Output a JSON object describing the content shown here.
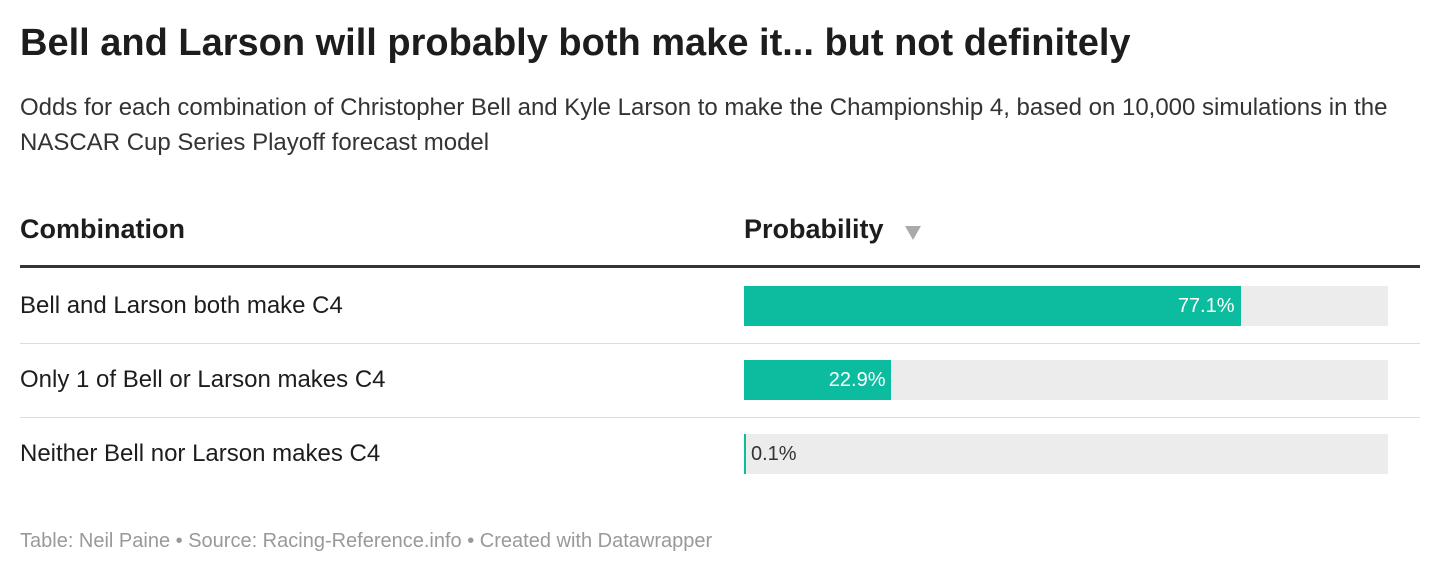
{
  "title": "Bell and Larson will probably both make it... but not definitely",
  "subtitle": "Odds for each combination of Christopher Bell and Kyle Larson to make the Championship 4, based on 10,000 simulations in the NASCAR Cup Series Playoff forecast model",
  "table": {
    "type": "bar",
    "columns": [
      "Combination",
      "Probability"
    ],
    "categories": [
      "Bell and Larson both make C4",
      "Only 1 of Bell or Larson makes C4",
      "Neither Bell nor Larson makes C4"
    ],
    "values": [
      77.1,
      22.9,
      0.1
    ],
    "value_labels": [
      "77.1%",
      "22.9%",
      "0.1%"
    ],
    "xlim": [
      0,
      100
    ],
    "color": "#0bbc9f"
  },
  "footer": "Table: Neil Paine • Source: Racing-Reference.info • Created with Datawrapper"
}
